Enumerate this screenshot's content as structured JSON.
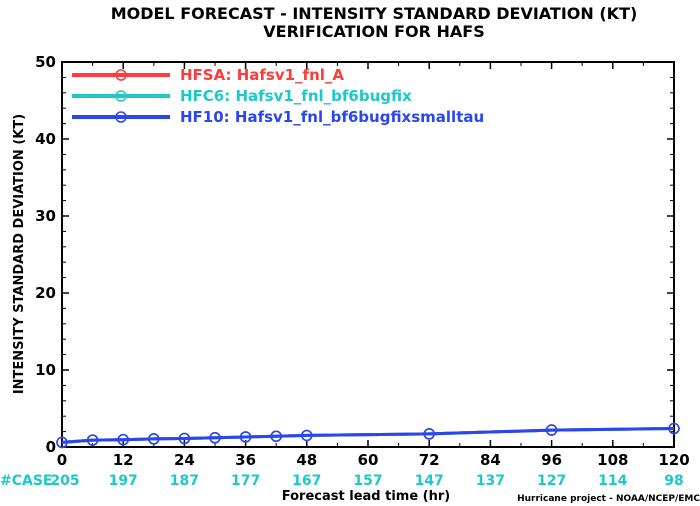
{
  "chart_data": {
    "type": "line",
    "title": "MODEL FORECAST - INTENSITY STANDARD DEVIATION (KT)",
    "subtitle": "VERIFICATION FOR HAFS",
    "xlabel": "Forecast lead time (hr)",
    "ylabel": "INTENSITY STANDARD DEVIATION (KT)",
    "xlim": [
      0,
      120
    ],
    "ylim": [
      0,
      50
    ],
    "x_ticks": [
      0,
      12,
      24,
      36,
      48,
      60,
      72,
      84,
      96,
      108,
      120
    ],
    "y_ticks": [
      0,
      10,
      20,
      30,
      40,
      50
    ],
    "grid": false,
    "legend_position": "top-left",
    "case_label": "#CASE",
    "case_counts": [
      "205",
      "197",
      "187",
      "177",
      "167",
      "157",
      "147",
      "137",
      "127",
      "114",
      "98"
    ],
    "credit": "Hurricane project - NOAA/NCEP/EMC",
    "x": [
      0,
      6,
      12,
      18,
      24,
      30,
      36,
      42,
      48,
      72,
      96,
      120
    ],
    "series": [
      {
        "name": "HFSA: Hafsv1_fnl_A",
        "color": "#ff3b3b",
        "values": [
          0.6,
          0.9,
          0.95,
          1.05,
          1.1,
          1.2,
          1.3,
          1.4,
          1.5,
          1.7,
          2.2,
          2.4
        ]
      },
      {
        "name": "HFC6: Hafsv1_fnl_bf6bugfix",
        "color": "#1ec8c8",
        "values": [
          0.6,
          0.9,
          0.95,
          1.05,
          1.1,
          1.2,
          1.3,
          1.4,
          1.5,
          1.7,
          2.2,
          2.4
        ]
      },
      {
        "name": "HF10: Hafsv1_fnl_bf6bugfixsmalltau",
        "color": "#2b46f0",
        "values": [
          0.6,
          0.9,
          0.95,
          1.05,
          1.1,
          1.2,
          1.3,
          1.4,
          1.5,
          1.7,
          2.2,
          2.4
        ]
      }
    ],
    "case_color": "#1ec8c8"
  }
}
